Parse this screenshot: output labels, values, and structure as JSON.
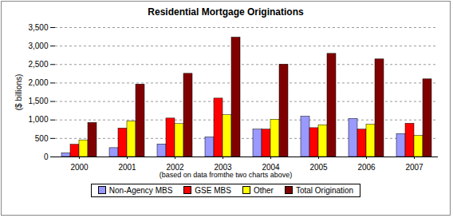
{
  "chart_data": {
    "type": "bar",
    "title": "Residential Mortgage Originations",
    "ylabel": "($ billions)",
    "xlabel": "(based on data fromthe two charts above)",
    "categories": [
      "2000",
      "2001",
      "2002",
      "2003",
      "2004",
      "2005",
      "2006",
      "2007"
    ],
    "series": [
      {
        "name": "Non-Agency MBS",
        "color": "#9999ff",
        "values": [
          100,
          240,
          340,
          530,
          740,
          1090,
          1030,
          620
        ]
      },
      {
        "name": "GSE MBS",
        "color": "#ff0000",
        "values": [
          330,
          770,
          1040,
          1580,
          740,
          780,
          740,
          900
        ]
      },
      {
        "name": "Other",
        "color": "#ffff00",
        "values": [
          450,
          960,
          890,
          1130,
          1010,
          860,
          870,
          570
        ]
      },
      {
        "name": "Total Origination",
        "color": "#800000",
        "values": [
          920,
          1960,
          2250,
          3230,
          2500,
          2790,
          2640,
          2100
        ]
      }
    ],
    "ylim": [
      0,
      3500
    ],
    "yticks": [
      0,
      500,
      {
        "value": 1000,
        "label": "1,000"
      },
      {
        "value": 1500,
        "label": "1,500"
      },
      {
        "value": 2000,
        "label": "2,000"
      },
      {
        "value": 2500,
        "label": "2,500"
      },
      {
        "value": 3000,
        "label": "3,000"
      },
      {
        "value": 3500,
        "label": "3,500"
      }
    ],
    "grid": true,
    "legend": "bottom"
  }
}
